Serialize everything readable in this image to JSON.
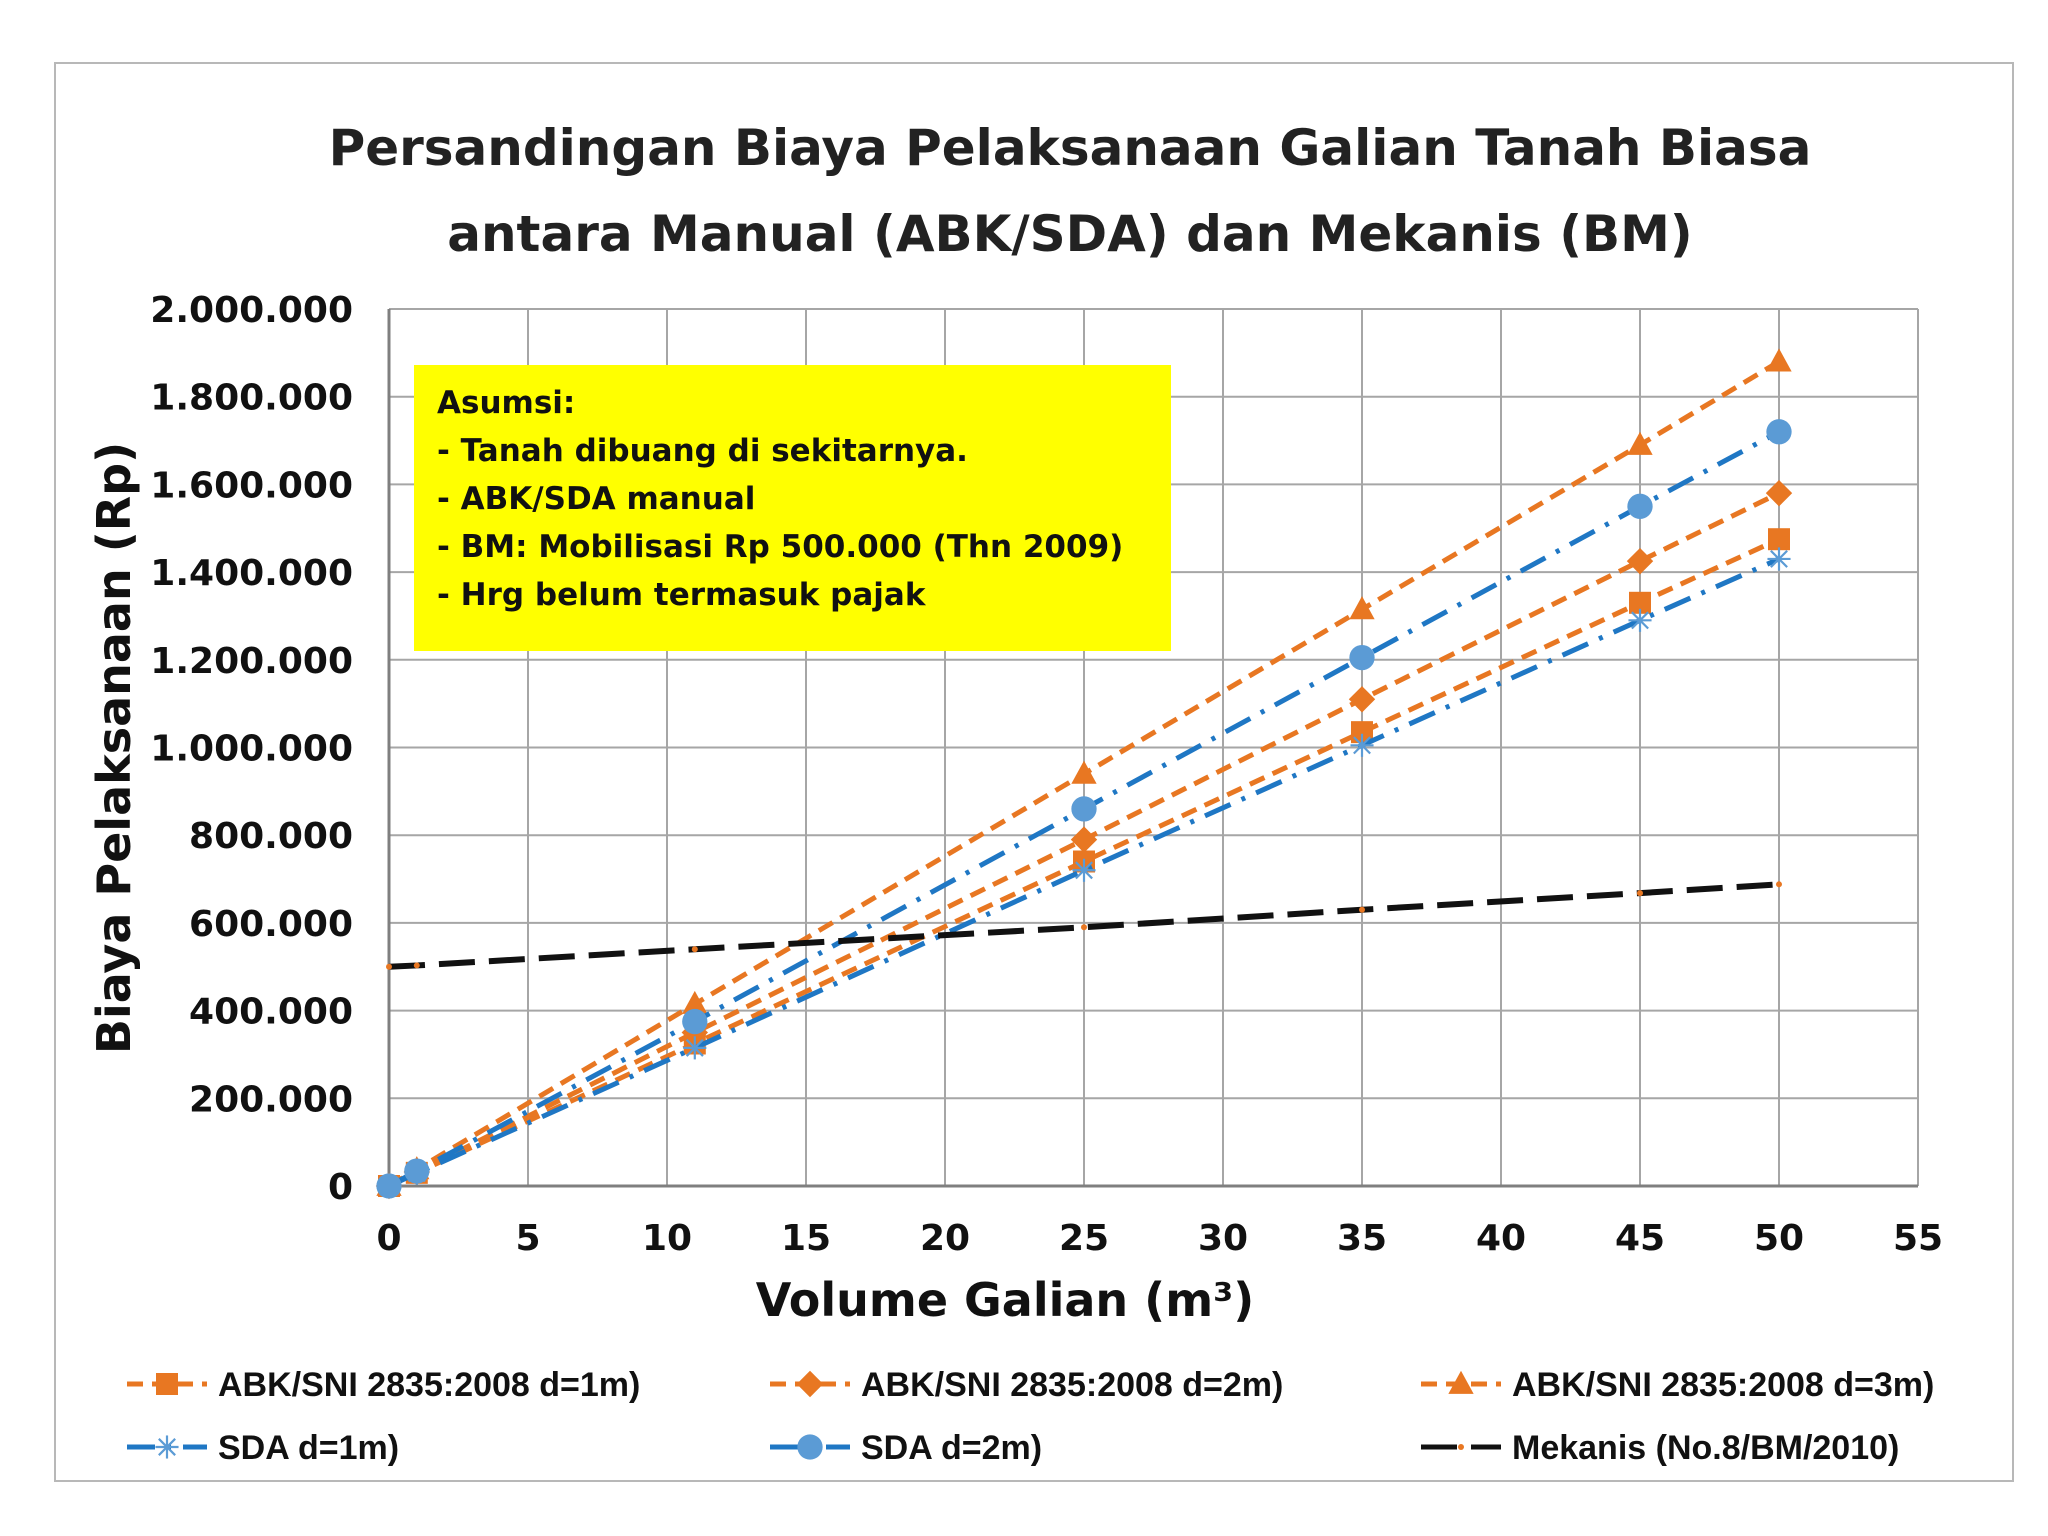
{
  "chart_data": {
    "type": "line",
    "title": [
      "Persandingan Biaya Pelaksanaan Galian Tanah Biasa",
      "antara Manual (ABK/SDA) dan Mekanis (BM)"
    ],
    "xlabel": "Volume Galian (m³)",
    "ylabel": "Biaya Pelaksanaan (Rp)",
    "xlim": [
      0,
      55
    ],
    "ylim": [
      0,
      2000000
    ],
    "x_ticks": [
      "0",
      "5",
      "10",
      "15",
      "20",
      "25",
      "30",
      "35",
      "40",
      "45",
      "50",
      "55"
    ],
    "y_ticks": [
      "0",
      "200.000",
      "400.000",
      "600.000",
      "800.000",
      "1.000.000",
      "1.200.000",
      "1.400.000",
      "1.600.000",
      "1.800.000",
      "2.000.000"
    ],
    "grid": true,
    "legend_position": "bottom",
    "series": [
      {
        "name": "ABK/SNI 2835:2008 d=1m)",
        "color": "#e87722",
        "marker": "square",
        "dash": "dashed",
        "x": [
          0,
          1,
          11,
          25,
          35,
          45,
          50
        ],
        "y": [
          0,
          30000,
          325000,
          740000,
          1035000,
          1330000,
          1475000
        ]
      },
      {
        "name": "ABK/SNI 2835:2008 d=2m)",
        "color": "#e87722",
        "marker": "diamond",
        "dash": "dashed",
        "x": [
          0,
          1,
          11,
          25,
          35,
          45,
          50
        ],
        "y": [
          0,
          32000,
          350000,
          790000,
          1110000,
          1425000,
          1580000
        ]
      },
      {
        "name": "ABK/SNI 2835:2008 d=3m)",
        "color": "#e87722",
        "marker": "triangle",
        "dash": "dashed",
        "x": [
          0,
          1,
          11,
          25,
          35,
          45,
          50
        ],
        "y": [
          0,
          38000,
          415000,
          940000,
          1315000,
          1690000,
          1880000
        ]
      },
      {
        "name": "SDA d=1m)",
        "color": "#1f77c4",
        "marker": "star",
        "dash": "dashdot",
        "x": [
          0,
          1,
          11,
          25,
          35,
          45,
          50
        ],
        "y": [
          0,
          29000,
          315000,
          720000,
          1005000,
          1290000,
          1430000
        ]
      },
      {
        "name": "SDA d=2m)",
        "color": "#1f77c4",
        "marker_color": "#5b9bd5",
        "marker": "circle",
        "dash": "dashdot",
        "x": [
          0,
          1,
          11,
          25,
          35,
          45,
          50
        ],
        "y": [
          0,
          34000,
          375000,
          860000,
          1205000,
          1550000,
          1720000
        ]
      },
      {
        "name": "Mekanis (No.8/BM/2010)",
        "color": "#111111",
        "marker": "dot",
        "dash": "longdash",
        "x": [
          0,
          1,
          11,
          25,
          35,
          45,
          50
        ],
        "y": [
          500000,
          503000,
          540000,
          590000,
          630000,
          668000,
          688000
        ]
      }
    ]
  },
  "annotation": {
    "background": "#ffff00",
    "lines": [
      "Asumsi:",
      "- Tanah dibuang di sekitarnya.",
      "- ABK/SDA manual",
      "- BM: Mobilisasi Rp 500.000 (Thn 2009)",
      "- Hrg belum termasuk pajak"
    ]
  }
}
